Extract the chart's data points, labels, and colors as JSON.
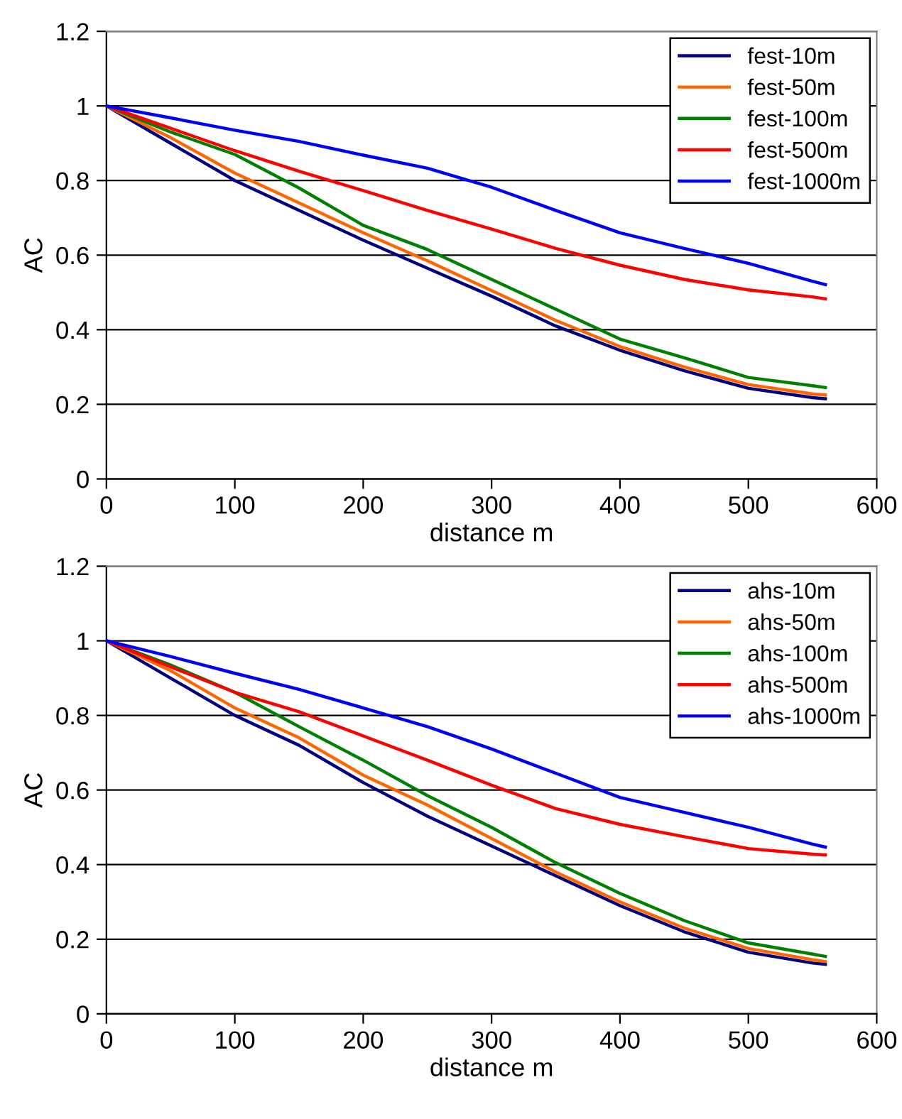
{
  "chart_data": [
    {
      "type": "line",
      "xlabel": "distance m",
      "ylabel": "AC",
      "x": [
        0,
        50,
        100,
        150,
        200,
        250,
        300,
        350,
        400,
        450,
        500,
        550,
        560
      ],
      "series": [
        {
          "name": "fest-10m",
          "color": "#000080",
          "values": [
            1,
            0.9,
            0.8,
            0.72,
            0.64,
            0.565,
            0.49,
            0.41,
            0.345,
            0.29,
            0.243,
            0.218,
            0.215
          ]
        },
        {
          "name": "fest-50m",
          "color": "#ff6600",
          "values": [
            1,
            0.915,
            0.82,
            0.74,
            0.66,
            0.585,
            0.505,
            0.425,
            0.355,
            0.3,
            0.253,
            0.228,
            0.225
          ]
        },
        {
          "name": "fest-100m",
          "color": "#008000",
          "values": [
            1,
            0.93,
            0.87,
            0.78,
            0.68,
            0.615,
            0.535,
            0.455,
            0.375,
            0.325,
            0.272,
            0.25,
            0.245
          ]
        },
        {
          "name": "fest-500m",
          "color": "#ff0000",
          "values": [
            1,
            0.94,
            0.88,
            0.825,
            0.773,
            0.72,
            0.67,
            0.618,
            0.573,
            0.535,
            0.507,
            0.488,
            0.483
          ]
        },
        {
          "name": "fest-1000m",
          "color": "#0000ff",
          "values": [
            1,
            0.968,
            0.935,
            0.905,
            0.868,
            0.833,
            0.782,
            0.72,
            0.66,
            0.618,
            0.578,
            0.53,
            0.521
          ]
        }
      ],
      "xlim": [
        0,
        600
      ],
      "xticks": [
        0,
        100,
        200,
        300,
        400,
        500,
        600
      ],
      "ylim": [
        0,
        1.2
      ],
      "yticks": [
        0,
        0.2,
        0.4,
        0.6,
        0.8,
        1,
        1.2
      ],
      "grid": "y",
      "legend": "top right",
      "marker": "none",
      "line_style": "solid"
    },
    {
      "type": "line",
      "xlabel": "distance m",
      "ylabel": "AC",
      "x": [
        0,
        50,
        100,
        150,
        200,
        250,
        300,
        350,
        400,
        450,
        500,
        550,
        560
      ],
      "series": [
        {
          "name": "ahs-10m",
          "color": "#000080",
          "values": [
            1,
            0.9,
            0.8,
            0.72,
            0.62,
            0.53,
            0.45,
            0.37,
            0.29,
            0.22,
            0.165,
            0.136,
            0.133
          ]
        },
        {
          "name": "ahs-50m",
          "color": "#ff6600",
          "values": [
            1,
            0.92,
            0.82,
            0.74,
            0.64,
            0.56,
            0.47,
            0.38,
            0.3,
            0.23,
            0.175,
            0.145,
            0.14
          ]
        },
        {
          "name": "ahs-100m",
          "color": "#008000",
          "values": [
            1,
            0.935,
            0.862,
            0.77,
            0.68,
            0.585,
            0.5,
            0.405,
            0.323,
            0.25,
            0.19,
            0.16,
            0.154
          ]
        },
        {
          "name": "ahs-500m",
          "color": "#ff0000",
          "values": [
            1,
            0.93,
            0.862,
            0.81,
            0.745,
            0.68,
            0.613,
            0.55,
            0.508,
            0.475,
            0.443,
            0.428,
            0.426
          ]
        },
        {
          "name": "ahs-1000m",
          "color": "#0000ff",
          "values": [
            1,
            0.958,
            0.913,
            0.87,
            0.82,
            0.77,
            0.71,
            0.645,
            0.58,
            0.54,
            0.5,
            0.455,
            0.447
          ]
        }
      ],
      "xlim": [
        0,
        600
      ],
      "xticks": [
        0,
        100,
        200,
        300,
        400,
        500,
        600
      ],
      "ylim": [
        0,
        1.2
      ],
      "yticks": [
        0,
        0.2,
        0.4,
        0.6,
        0.8,
        1,
        1.2
      ],
      "grid": "y",
      "legend": "top right",
      "marker": "none",
      "line_style": "solid"
    }
  ]
}
